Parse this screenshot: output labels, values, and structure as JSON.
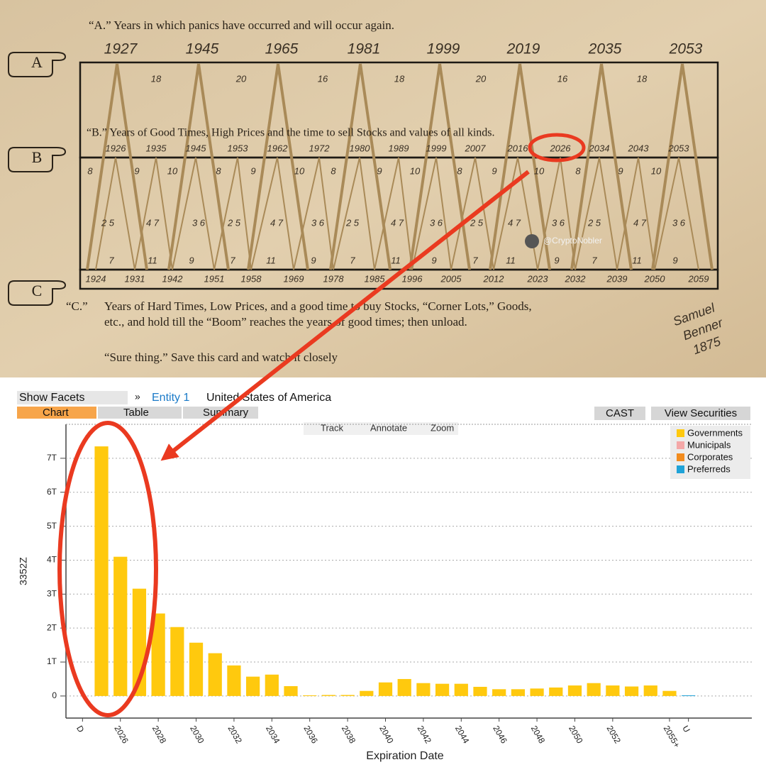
{
  "card": {
    "hands": [
      "A",
      "B",
      "C"
    ],
    "a_title": "“A.” Years in which panics have occurred and will occur again.",
    "a_years": [
      1927,
      1945,
      1965,
      1981,
      1999,
      2019,
      2035,
      2053
    ],
    "a_intervals": [
      18,
      20,
      16,
      18,
      20,
      16,
      18
    ],
    "b_title": "“B.” Years of Good Times, High Prices and the time to sell Stocks and values of all kinds.",
    "b_years": [
      1926,
      1935,
      1945,
      1953,
      1962,
      1972,
      1980,
      1989,
      1999,
      2007,
      2016,
      2026,
      2034,
      2043,
      2053
    ],
    "b_row_top": [
      8,
      9,
      10,
      8,
      9,
      10,
      8,
      9,
      10,
      8,
      9,
      10,
      8,
      9,
      10
    ],
    "b_row_mid": [
      "2 5",
      "4 7",
      "3 6",
      "2 5",
      "4 7",
      "3 6",
      "2 5",
      "4 7",
      "3 6",
      "2 5",
      "4 7",
      "3 6",
      "2 5",
      "4 7",
      "3 6"
    ],
    "b_row_bottom": [
      7,
      11,
      9,
      7,
      11,
      9,
      7,
      11,
      9,
      7,
      11,
      9,
      7,
      11,
      9
    ],
    "c_years": [
      1924,
      1931,
      1942,
      1951,
      1958,
      1969,
      1978,
      1985,
      1996,
      2005,
      2012,
      2023,
      2032,
      2039,
      2050,
      2059
    ],
    "c_label": "“C.”",
    "c_lines": [
      "Years of Hard Times, Low Prices, and a good time to buy Stocks, “Corner Lots,” Goods,",
      "etc., and hold till the “Boom” reaches the years of good times; then unload."
    ],
    "sure_thing": "“Sure thing.” Save this card and watch it closely",
    "watermark": "@CryptoNobler",
    "signature": [
      "Samuel",
      "Benner",
      "1875"
    ]
  },
  "ui": {
    "show_facets": "Show Facets",
    "expand": "»",
    "entity": "Entity 1",
    "country": "United States of America",
    "tabs": [
      "Chart",
      "Table",
      "Summary"
    ],
    "buttons": [
      "CAST",
      "View Securities"
    ],
    "tools": [
      "Track",
      "Annotate",
      "Zoom"
    ]
  },
  "chart_data": {
    "type": "bar",
    "y_label": "3352Z",
    "x_label": "Expiration Date",
    "categories": [
      "D",
      null,
      "2026",
      null,
      "2028",
      null,
      "2030",
      null,
      "2032",
      null,
      "2034",
      null,
      "2036",
      null,
      "2038",
      null,
      "2040",
      null,
      "2042",
      null,
      "2044",
      null,
      "2046",
      null,
      "2048",
      null,
      "2050",
      null,
      "2052",
      null,
      null,
      "2055+",
      "U"
    ],
    "series": [
      {
        "name": "Governments",
        "color": "#ffc90e",
        "values": [
          null,
          7.35,
          4.1,
          3.16,
          2.43,
          2.03,
          1.57,
          1.26,
          0.9,
          0.57,
          0.63,
          0.29,
          0.02,
          0.03,
          0.03,
          0.15,
          0.4,
          0.5,
          0.38,
          0.36,
          0.36,
          0.27,
          0.2,
          0.2,
          0.22,
          0.25,
          0.31,
          0.38,
          0.31,
          0.28,
          0.31,
          0.15,
          null
        ]
      },
      {
        "name": "Municipals",
        "color": "#f4a8a8",
        "values": [
          null,
          null,
          null,
          null,
          null,
          null,
          null,
          null,
          null,
          null,
          null,
          null,
          null,
          null,
          null,
          null,
          null,
          null,
          null,
          null,
          null,
          null,
          null,
          null,
          null,
          null,
          null,
          null,
          null,
          null,
          null,
          null,
          null
        ]
      },
      {
        "name": "Corporates",
        "color": "#f28c1e",
        "values": [
          null,
          null,
          null,
          null,
          null,
          null,
          null,
          null,
          null,
          null,
          null,
          null,
          null,
          null,
          null,
          null,
          null,
          null,
          null,
          null,
          null,
          null,
          null,
          null,
          null,
          null,
          null,
          null,
          null,
          null,
          null,
          null,
          null
        ]
      },
      {
        "name": "Preferreds",
        "color": "#1fa3d8",
        "values": [
          null,
          null,
          null,
          null,
          null,
          null,
          null,
          null,
          null,
          null,
          null,
          null,
          null,
          null,
          null,
          null,
          null,
          null,
          null,
          null,
          null,
          null,
          null,
          null,
          null,
          null,
          null,
          null,
          null,
          null,
          null,
          null,
          0.02
        ]
      }
    ],
    "ylim": [
      -0.65,
      8.0
    ],
    "yticks": [
      {
        "value": 0,
        "label": "0"
      },
      {
        "value": 1,
        "label": "1T"
      },
      {
        "value": 2,
        "label": "2T"
      },
      {
        "value": 3,
        "label": "3T"
      },
      {
        "value": 4,
        "label": "4T"
      },
      {
        "value": 5,
        "label": "5T"
      },
      {
        "value": 6,
        "label": "6T"
      },
      {
        "value": 7,
        "label": "7T"
      }
    ],
    "grid": true,
    "legend": "top-right"
  }
}
